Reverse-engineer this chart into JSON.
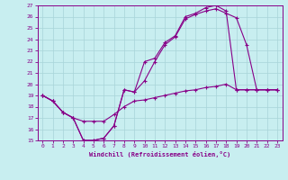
{
  "xlabel": "Windchill (Refroidissement éolien,°C)",
  "bg_color": "#c8eef0",
  "grid_color": "#a8d4d8",
  "line_color": "#880088",
  "xlim_min": -0.5,
  "xlim_max": 23.5,
  "ylim_min": 15,
  "ylim_max": 27,
  "xticks": [
    0,
    1,
    2,
    3,
    4,
    5,
    6,
    7,
    8,
    9,
    10,
    11,
    12,
    13,
    14,
    15,
    16,
    17,
    18,
    19,
    20,
    21,
    22,
    23
  ],
  "yticks": [
    15,
    16,
    17,
    18,
    19,
    20,
    21,
    22,
    23,
    24,
    25,
    26,
    27
  ],
  "curve1_x": [
    0,
    1,
    2,
    3,
    4,
    5,
    6,
    7,
    8,
    9,
    10,
    11,
    12,
    13,
    14,
    15,
    16,
    17,
    18,
    19,
    20,
    21,
    22,
    23
  ],
  "curve1_y": [
    19.0,
    18.5,
    17.5,
    17.0,
    15.0,
    15.0,
    15.2,
    16.3,
    19.5,
    19.3,
    22.0,
    22.3,
    23.7,
    24.3,
    26.0,
    26.3,
    26.8,
    27.0,
    26.5,
    19.5,
    19.5,
    19.5,
    19.5,
    19.5
  ],
  "curve2_x": [
    0,
    1,
    2,
    3,
    4,
    5,
    6,
    7,
    8,
    9,
    10,
    11,
    12,
    13,
    14,
    15,
    16,
    17,
    18,
    19,
    20,
    21,
    22,
    23
  ],
  "curve2_y": [
    19.0,
    18.5,
    17.5,
    17.0,
    15.0,
    15.0,
    15.2,
    16.3,
    19.5,
    19.3,
    20.3,
    22.0,
    23.5,
    24.2,
    25.8,
    26.2,
    26.5,
    26.7,
    26.3,
    25.9,
    23.5,
    19.5,
    19.5,
    19.5
  ],
  "curve3_x": [
    0,
    1,
    2,
    3,
    4,
    5,
    6,
    7,
    8,
    9,
    10,
    11,
    12,
    13,
    14,
    15,
    16,
    17,
    18,
    19,
    20,
    21,
    22,
    23
  ],
  "curve3_y": [
    19.0,
    18.5,
    17.5,
    17.0,
    16.7,
    16.7,
    16.7,
    17.3,
    18.0,
    18.5,
    18.6,
    18.8,
    19.0,
    19.2,
    19.4,
    19.5,
    19.7,
    19.8,
    20.0,
    19.5,
    19.5,
    19.5,
    19.5,
    19.5
  ]
}
